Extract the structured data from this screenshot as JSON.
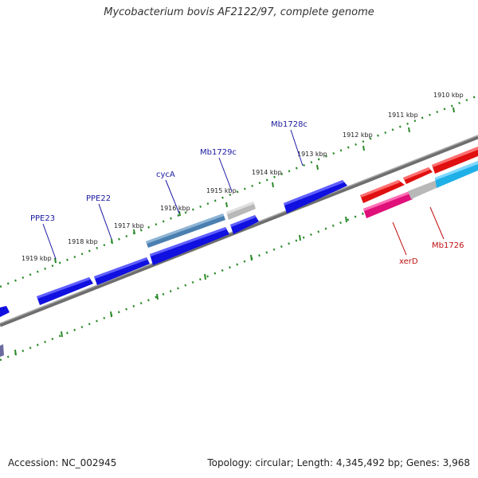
{
  "title": "Mycobacterium bovis AF2122/97, complete genome",
  "footer": {
    "accession": "Accession: NC_002945",
    "topology": "Topology: circular; Length: 4,345,492 bp; Genes: 3,968"
  },
  "ticks": [
    "1919 kbp",
    "1918 kbp",
    "1917 kbp",
    "1916 kbp",
    "1915 kbp",
    "1914 kbp",
    "1913 kbp",
    "1912 kbp",
    "1911 kbp",
    "1910 kbp"
  ],
  "gene_labels": {
    "blue": [
      "PPE23",
      "PPE22",
      "cycA",
      "Mb1729c",
      "Mb1728c"
    ],
    "red": [
      "xerD",
      "Mb1726"
    ]
  },
  "colors": {
    "backbone": "#808080",
    "tick_dots": "#2a8a2a",
    "gene_blue": "#1010e0",
    "gene_steel": "#4a7fb0",
    "gene_grey": "#b8b8b8",
    "gene_red": "#e01010",
    "gene_pink": "#e0107a",
    "gene_cyan": "#20b0e8",
    "label_blue": "#1a1aa0",
    "label_red": "#c01010"
  }
}
